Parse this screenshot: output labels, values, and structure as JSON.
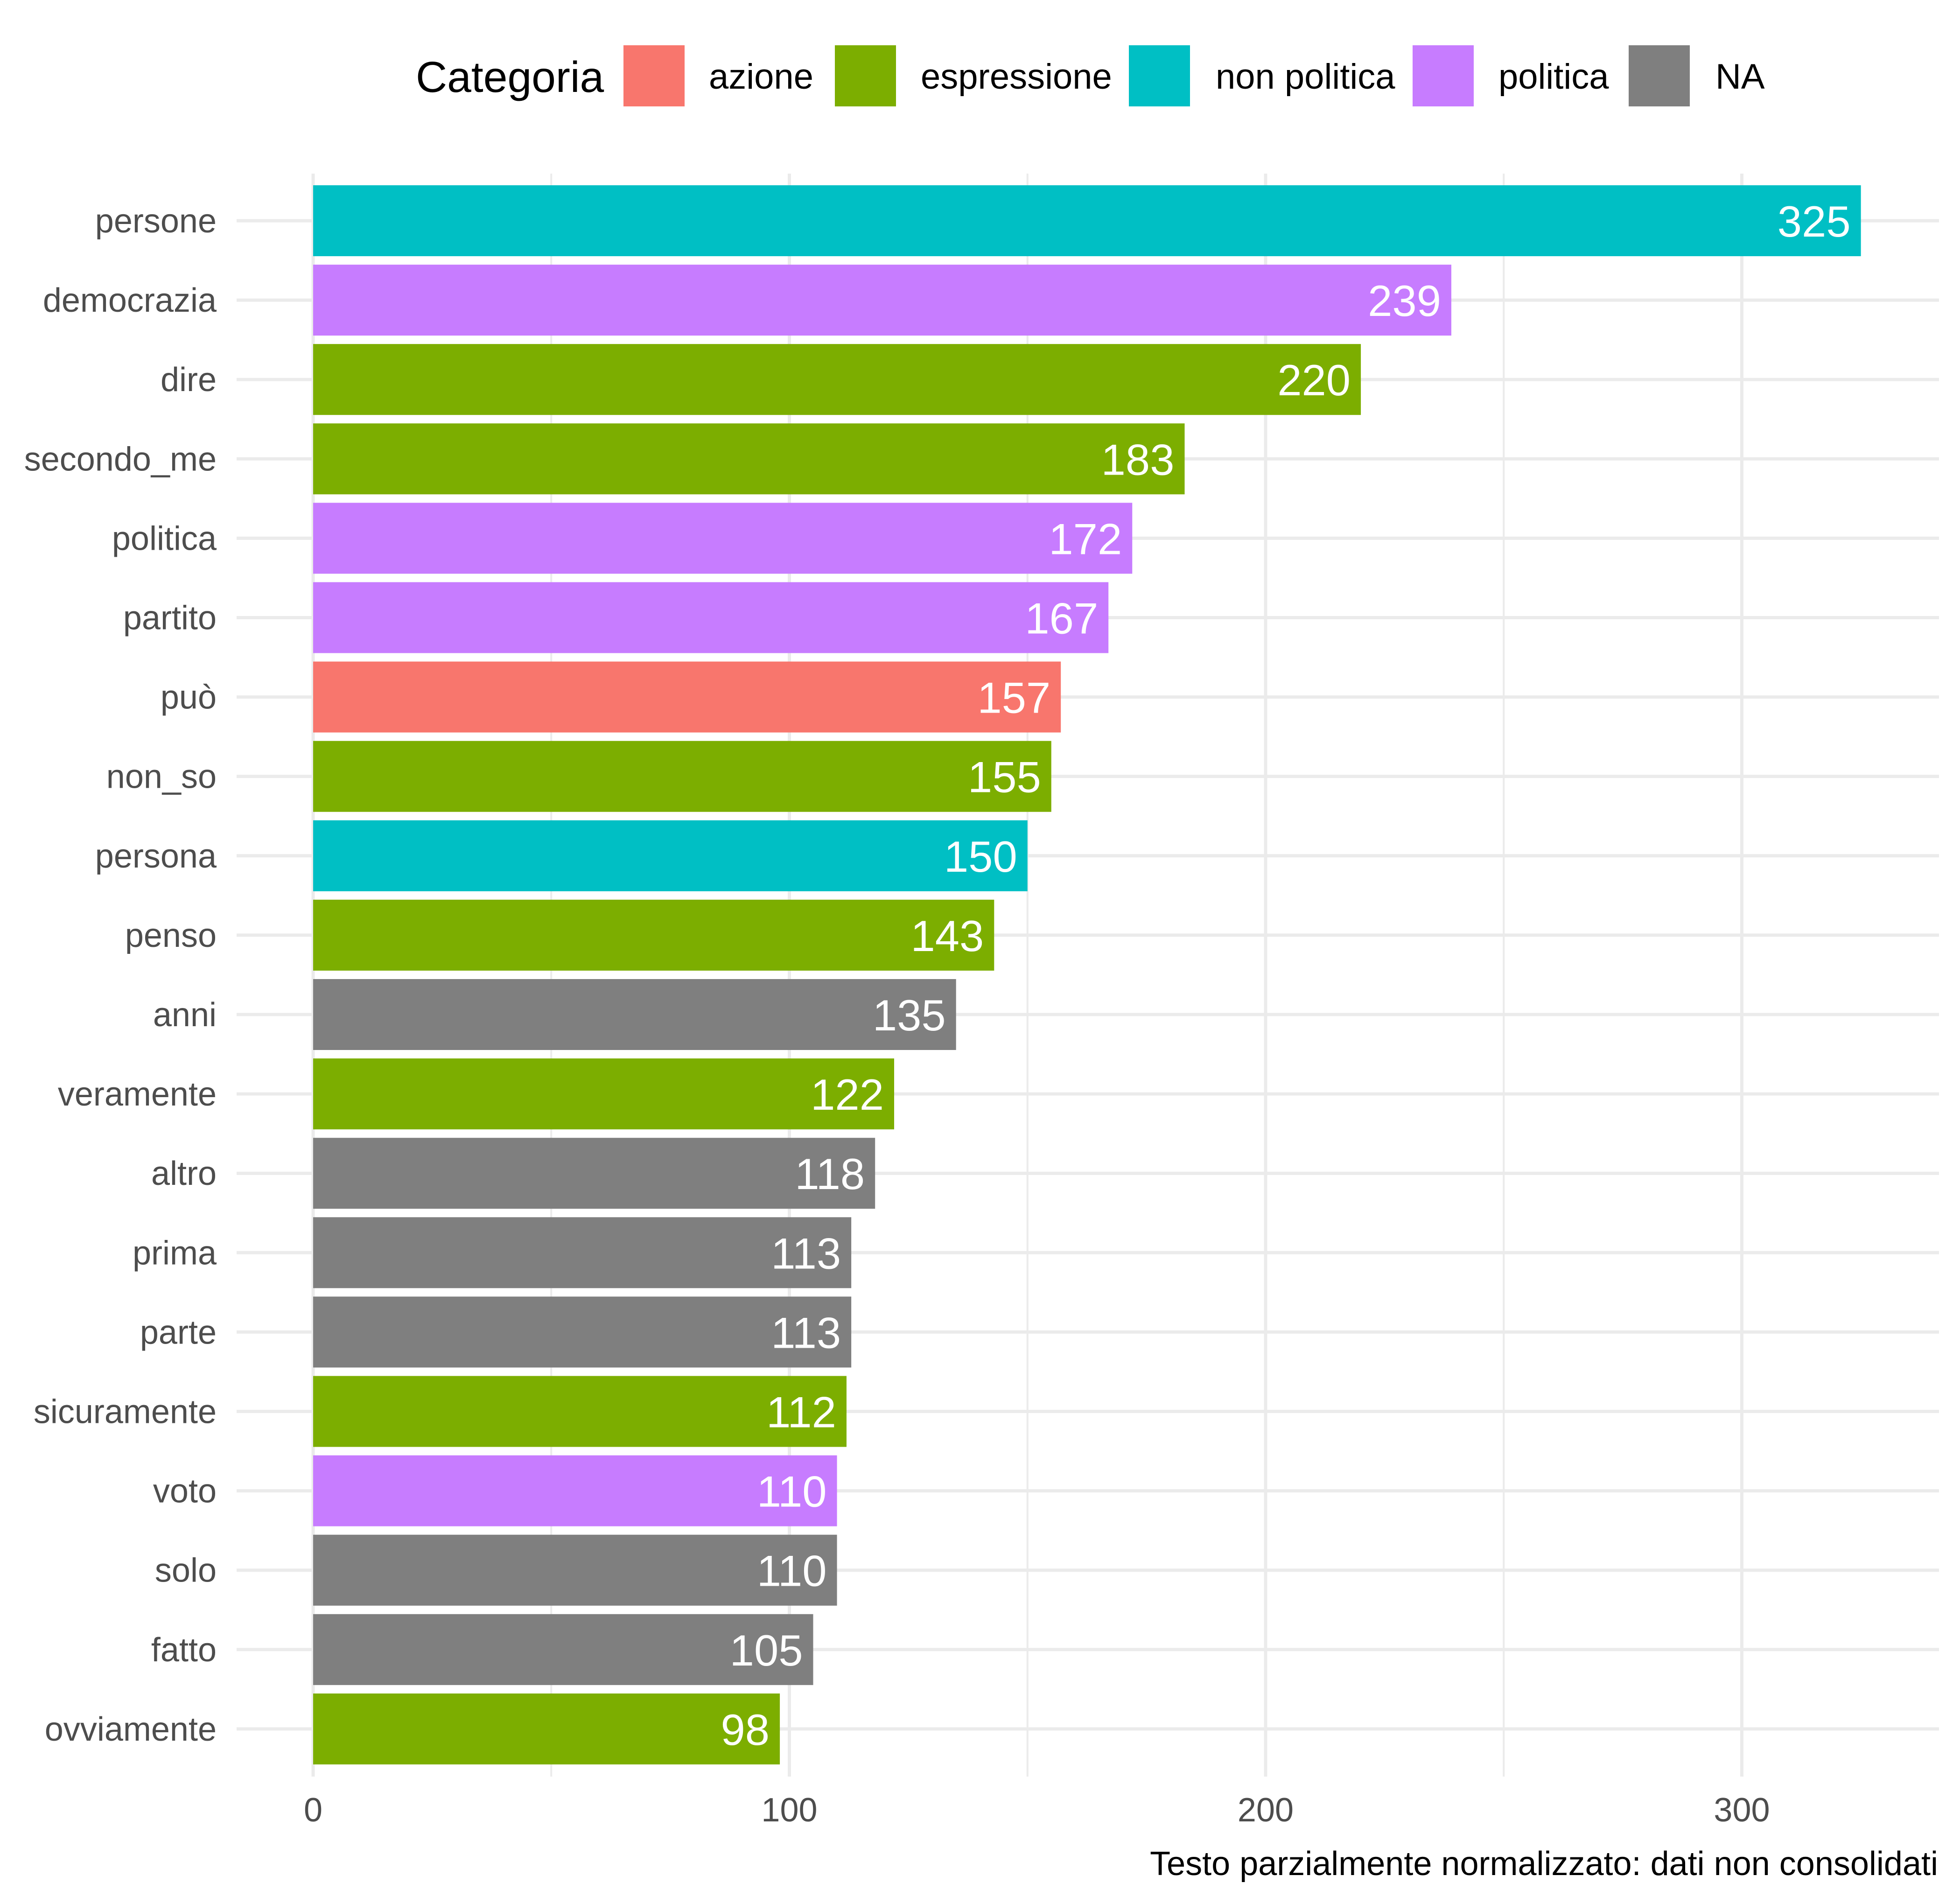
{
  "chart_data": {
    "type": "bar",
    "orientation": "horizontal",
    "categories": [
      "persone",
      "democrazia",
      "dire",
      "secondo_me",
      "politica",
      "partito",
      "può",
      "non_so",
      "persona",
      "penso",
      "anni",
      "veramente",
      "altro",
      "prima",
      "parte",
      "sicuramente",
      "voto",
      "solo",
      "fatto",
      "ovviamente"
    ],
    "values": [
      325,
      239,
      220,
      183,
      172,
      167,
      157,
      155,
      150,
      143,
      135,
      122,
      118,
      113,
      113,
      112,
      110,
      110,
      105,
      98
    ],
    "groups": [
      "non politica",
      "politica",
      "espressione",
      "espressione",
      "politica",
      "politica",
      "azione",
      "espressione",
      "non politica",
      "espressione",
      "NA",
      "espressione",
      "NA",
      "NA",
      "NA",
      "espressione",
      "politica",
      "NA",
      "NA",
      "espressione"
    ],
    "value_labels": [
      "325",
      "239",
      "220",
      "183",
      "172",
      "167",
      "157",
      "155",
      "150",
      "143",
      "135",
      "122",
      "118",
      "113",
      "113",
      "112",
      "110",
      "110",
      "105",
      "98"
    ],
    "xlim": [
      0,
      340
    ],
    "x_ticks": [
      0,
      100,
      200,
      300
    ],
    "x_tick_labels": [
      "0",
      "100",
      "200",
      "300"
    ],
    "x_minor_ticks": [
      50,
      150,
      250
    ],
    "grid": true,
    "title": "",
    "xlabel": "",
    "ylabel": "",
    "caption": "Testo parzialmente normalizzato: dati non consolidati",
    "legend": {
      "title": "Categoria",
      "position": "top",
      "entries": [
        {
          "label": "azione",
          "color": "#F8766D"
        },
        {
          "label": "espressione",
          "color": "#7CAE00"
        },
        {
          "label": "non politica",
          "color": "#00BFC4"
        },
        {
          "label": "politica",
          "color": "#C77CFF"
        },
        {
          "label": "NA",
          "color": "#7F7F7F"
        }
      ]
    }
  }
}
